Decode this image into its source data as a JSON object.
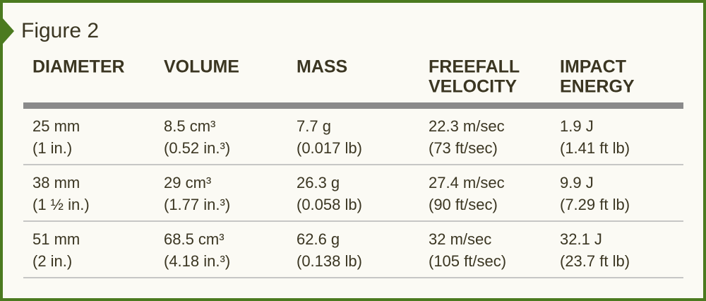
{
  "title": "Figure 2",
  "table": {
    "headers": [
      [
        "DIAMETER"
      ],
      [
        "VOLUME"
      ],
      [
        "MASS"
      ],
      [
        "FREEFALL",
        "VELOCITY"
      ],
      [
        "IMPACT",
        "ENERGY"
      ]
    ],
    "rows": [
      [
        [
          "25 mm",
          "(1 in.)"
        ],
        [
          "8.5 cm³",
          "(0.52 in.³)"
        ],
        [
          "7.7 g",
          "(0.017 lb)"
        ],
        [
          "22.3 m/sec",
          "(73 ft/sec)"
        ],
        [
          "1.9 J",
          "(1.41 ft lb)"
        ]
      ],
      [
        [
          "38 mm",
          "(1 ½ in.)"
        ],
        [
          "29 cm³",
          "(1.77 in.³)"
        ],
        [
          "26.3 g",
          "(0.058 lb)"
        ],
        [
          "27.4 m/sec",
          "(90 ft/sec)"
        ],
        [
          "9.9 J",
          "(7.29 ft lb)"
        ]
      ],
      [
        [
          "51 mm",
          "(2 in.)"
        ],
        [
          "68.5 cm³",
          "(4.18 in.³)"
        ],
        [
          "62.6 g",
          "(0.138 lb)"
        ],
        [
          "32 m/sec",
          "(105 ft/sec)"
        ],
        [
          "32.1 J",
          "(23.7 ft lb)"
        ]
      ]
    ]
  }
}
